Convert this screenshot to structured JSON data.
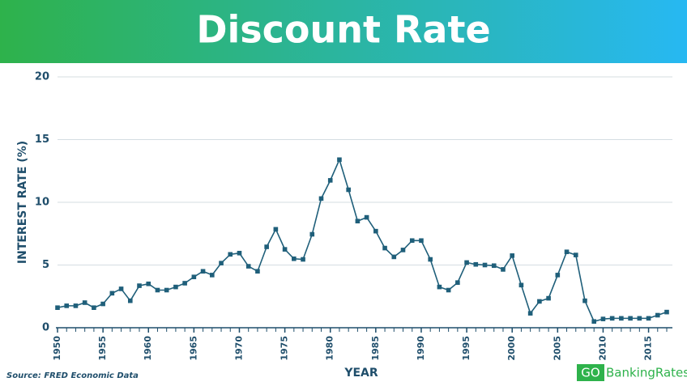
{
  "chart_data": {
    "type": "line",
    "title": "Discount Rate",
    "x_label": "YEAR",
    "y_label": "INTEREST RATE (%)",
    "source": "Source: FRED Economic Data",
    "logo": [
      "GO",
      "BankingRates"
    ],
    "x": [
      1950,
      1951,
      1952,
      1953,
      1954,
      1955,
      1956,
      1957,
      1958,
      1959,
      1960,
      1961,
      1962,
      1963,
      1964,
      1965,
      1966,
      1967,
      1968,
      1969,
      1970,
      1971,
      1972,
      1973,
      1974,
      1975,
      1976,
      1977,
      1978,
      1979,
      1980,
      1981,
      1982,
      1983,
      1984,
      1985,
      1986,
      1987,
      1988,
      1989,
      1990,
      1991,
      1992,
      1993,
      1994,
      1995,
      1996,
      1997,
      1998,
      1999,
      2000,
      2001,
      2002,
      2003,
      2004,
      2005,
      2006,
      2007,
      2008,
      2009,
      2010,
      2011,
      2012,
      2013,
      2014,
      2015,
      2016,
      2017
    ],
    "series": [
      {
        "name": "Discount Rate",
        "color": "#1f5f7a",
        "values": [
          1.6,
          1.75,
          1.75,
          2.0,
          1.6,
          1.9,
          2.75,
          3.1,
          2.15,
          3.35,
          3.5,
          3.0,
          3.0,
          3.25,
          3.55,
          4.05,
          4.5,
          4.2,
          5.15,
          5.85,
          5.95,
          4.9,
          4.5,
          6.45,
          7.85,
          6.25,
          5.5,
          5.45,
          7.45,
          10.3,
          11.75,
          13.4,
          11.0,
          8.5,
          8.8,
          7.7,
          6.35,
          5.65,
          6.2,
          6.95,
          6.95,
          5.45,
          3.25,
          3.0,
          3.6,
          5.2,
          5.05,
          5.0,
          4.95,
          4.65,
          5.75,
          3.4,
          1.15,
          2.1,
          2.35,
          4.2,
          6.05,
          5.8,
          2.15,
          0.5,
          0.7,
          0.75,
          0.75,
          0.75,
          0.75,
          0.75,
          1.0,
          1.25
        ]
      }
    ],
    "xlim": [
      1950,
      2017
    ],
    "xticks": [
      1950,
      1955,
      1960,
      1965,
      1970,
      1975,
      1980,
      1985,
      1990,
      1995,
      2000,
      2005,
      2010,
      2015
    ],
    "ylim": [
      0,
      20
    ],
    "yticks": [
      0,
      5,
      10,
      15,
      20
    ],
    "grid": true
  }
}
